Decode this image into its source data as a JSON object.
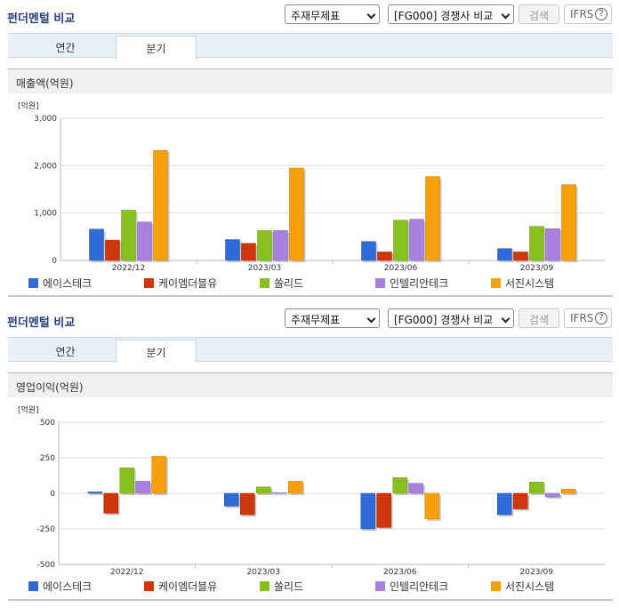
{
  "toolbar": {
    "title": "펀더멘털 비교",
    "select1": "주재무제표",
    "select2": "[FG000] 경쟁사 비교",
    "search_label": "검색",
    "ifrs_label": "IFRS",
    "help_glyph": "?"
  },
  "tabs": {
    "annual": "연간",
    "quarterly": "분기"
  },
  "legend": [
    {
      "name": "에이스테크",
      "color": "#2f6bd8"
    },
    {
      "name": "케이엠더블유",
      "color": "#d0360c"
    },
    {
      "name": "쏠리드",
      "color": "#88c020"
    },
    {
      "name": "인텔리안테크",
      "color": "#a780e0"
    },
    {
      "name": "서진시스템",
      "color": "#f8a00c"
    }
  ],
  "chart_data": [
    {
      "type": "bar",
      "title": "매출액(억원)",
      "ylabel": "[억원]",
      "categories": [
        "2022/12",
        "2023/03",
        "2023/06",
        "2023/09"
      ],
      "ylim": [
        0,
        3000
      ],
      "yticks": [
        "0",
        "1,000",
        "2,000",
        "3,000"
      ],
      "ytick_values": [
        0,
        1000,
        2000,
        3000
      ],
      "series": [
        {
          "name": "에이스테크",
          "values": [
            660,
            440,
            400,
            250
          ]
        },
        {
          "name": "케이엠더블유",
          "values": [
            430,
            360,
            180,
            180
          ]
        },
        {
          "name": "쏠리드",
          "values": [
            1060,
            630,
            850,
            720
          ]
        },
        {
          "name": "인텔리안테크",
          "values": [
            810,
            630,
            870,
            670
          ]
        },
        {
          "name": "서진시스템",
          "values": [
            2320,
            1950,
            1770,
            1600
          ]
        }
      ]
    },
    {
      "type": "bar",
      "title": "영업이익(억원)",
      "ylabel": "[억원]",
      "categories": [
        "2022/12",
        "2023/03",
        "2023/06",
        "2023/09"
      ],
      "ylim": [
        -500,
        500
      ],
      "yticks": [
        "-500",
        "-250",
        "0",
        "250",
        "500"
      ],
      "ytick_values": [
        -500,
        -250,
        0,
        250,
        500
      ],
      "series": [
        {
          "name": "에이스테크",
          "values": [
            10,
            -90,
            -250,
            -150
          ]
        },
        {
          "name": "케이엠더블유",
          "values": [
            -140,
            -150,
            -240,
            -110
          ]
        },
        {
          "name": "쏠리드",
          "values": [
            180,
            45,
            110,
            80
          ]
        },
        {
          "name": "인텔리안테크",
          "values": [
            85,
            5,
            70,
            -25
          ]
        },
        {
          "name": "서진시스템",
          "values": [
            260,
            85,
            -180,
            30
          ]
        }
      ]
    }
  ]
}
